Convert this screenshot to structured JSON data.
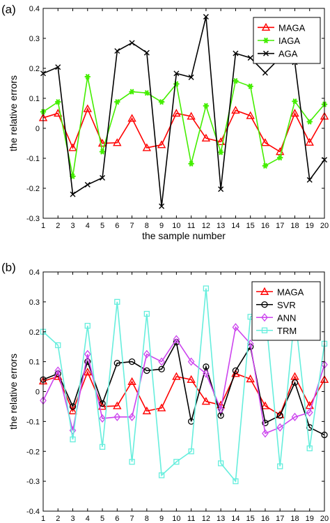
{
  "chart_data": [
    {
      "type": "line",
      "panel_label": "(a)",
      "xlabel": "the sample number",
      "ylabel": "the relative errors",
      "xlim": [
        1,
        20
      ],
      "ylim": [
        -0.3,
        0.4
      ],
      "x": [
        1,
        2,
        3,
        4,
        5,
        6,
        7,
        8,
        9,
        10,
        11,
        12,
        13,
        14,
        15,
        16,
        17,
        18,
        19,
        20
      ],
      "x_ticks": [
        "1",
        "2",
        "3",
        "4",
        "5",
        "6",
        "7",
        "8",
        "9",
        "10",
        "11",
        "12",
        "13",
        "14",
        "15",
        "16",
        "17",
        "18",
        "19",
        "20"
      ],
      "y_ticks": [
        "-0.3",
        "-0.2",
        "-0.1",
        "0",
        "0.1",
        "0.2",
        "0.3",
        "0.4"
      ],
      "grid": false,
      "legend_position": "top-right",
      "series": [
        {
          "name": "MAGA",
          "color": "#ff0000",
          "marker": "triangle",
          "values": [
            0.035,
            0.05,
            -0.065,
            0.065,
            -0.05,
            -0.048,
            0.033,
            -0.065,
            -0.055,
            0.05,
            0.04,
            -0.033,
            -0.045,
            0.06,
            0.042,
            -0.048,
            -0.078,
            0.05,
            -0.047,
            0.04
          ]
        },
        {
          "name": "IAGA",
          "color": "#44ee00",
          "marker": "asterisk",
          "values": [
            0.055,
            0.088,
            -0.16,
            0.172,
            -0.078,
            0.088,
            0.122,
            0.118,
            0.088,
            0.148,
            -0.118,
            0.075,
            -0.08,
            0.158,
            0.14,
            -0.125,
            -0.098,
            0.09,
            0.022,
            0.08
          ]
        },
        {
          "name": "AGA",
          "color": "#000000",
          "marker": "x",
          "values": [
            0.183,
            0.204,
            -0.22,
            -0.188,
            -0.165,
            0.258,
            0.285,
            0.252,
            -0.26,
            0.183,
            0.17,
            0.372,
            -0.203,
            0.25,
            0.235,
            0.185,
            0.235,
            0.22,
            -0.172,
            -0.105
          ]
        }
      ]
    },
    {
      "type": "line",
      "panel_label": "(b)",
      "xlabel": "the sample number",
      "ylabel": "the relative errors",
      "xlim": [
        1,
        20
      ],
      "ylim": [
        -0.4,
        0.4
      ],
      "x": [
        1,
        2,
        3,
        4,
        5,
        6,
        7,
        8,
        9,
        10,
        11,
        12,
        13,
        14,
        15,
        16,
        17,
        18,
        19,
        20
      ],
      "x_ticks": [
        "1",
        "2",
        "3",
        "4",
        "5",
        "6",
        "7",
        "8",
        "9",
        "10",
        "11",
        "12",
        "13",
        "14",
        "15",
        "16",
        "17",
        "18",
        "19",
        "20"
      ],
      "y_ticks": [
        "-0.4",
        "-0.3",
        "-0.2",
        "-0.1",
        "0",
        "0.1",
        "0.2",
        "0.3",
        "0.4"
      ],
      "grid": false,
      "legend_position": "top-right",
      "series": [
        {
          "name": "MAGA",
          "color": "#ff0000",
          "marker": "triangle",
          "values": [
            0.035,
            0.05,
            -0.065,
            0.065,
            -0.05,
            -0.048,
            0.033,
            -0.065,
            -0.055,
            0.05,
            0.04,
            -0.033,
            -0.045,
            0.06,
            0.042,
            -0.048,
            -0.078,
            0.05,
            -0.047,
            0.04
          ]
        },
        {
          "name": "SVR",
          "color": "#000000",
          "marker": "circle",
          "values": [
            0.04,
            0.06,
            -0.05,
            0.1,
            -0.04,
            0.095,
            0.1,
            0.07,
            0.075,
            0.165,
            -0.1,
            0.083,
            -0.08,
            0.07,
            0.15,
            -0.105,
            -0.08,
            0.03,
            -0.12,
            -0.145
          ]
        },
        {
          "name": "ANN",
          "color": "#cc44ee",
          "marker": "diamond",
          "values": [
            -0.03,
            0.07,
            -0.13,
            0.125,
            -0.09,
            -0.085,
            -0.085,
            0.125,
            0.1,
            0.175,
            0.1,
            0.06,
            -0.06,
            0.215,
            0.16,
            -0.14,
            -0.12,
            -0.085,
            -0.07,
            0.09
          ]
        },
        {
          "name": "TRM",
          "color": "#66eedd",
          "marker": "square",
          "values": [
            0.2,
            0.155,
            -0.16,
            0.22,
            -0.185,
            0.3,
            -0.235,
            0.26,
            -0.28,
            -0.235,
            -0.2,
            0.345,
            -0.24,
            -0.3,
            0.25,
            0.27,
            -0.25,
            0.26,
            -0.19,
            0.16
          ]
        }
      ]
    }
  ]
}
